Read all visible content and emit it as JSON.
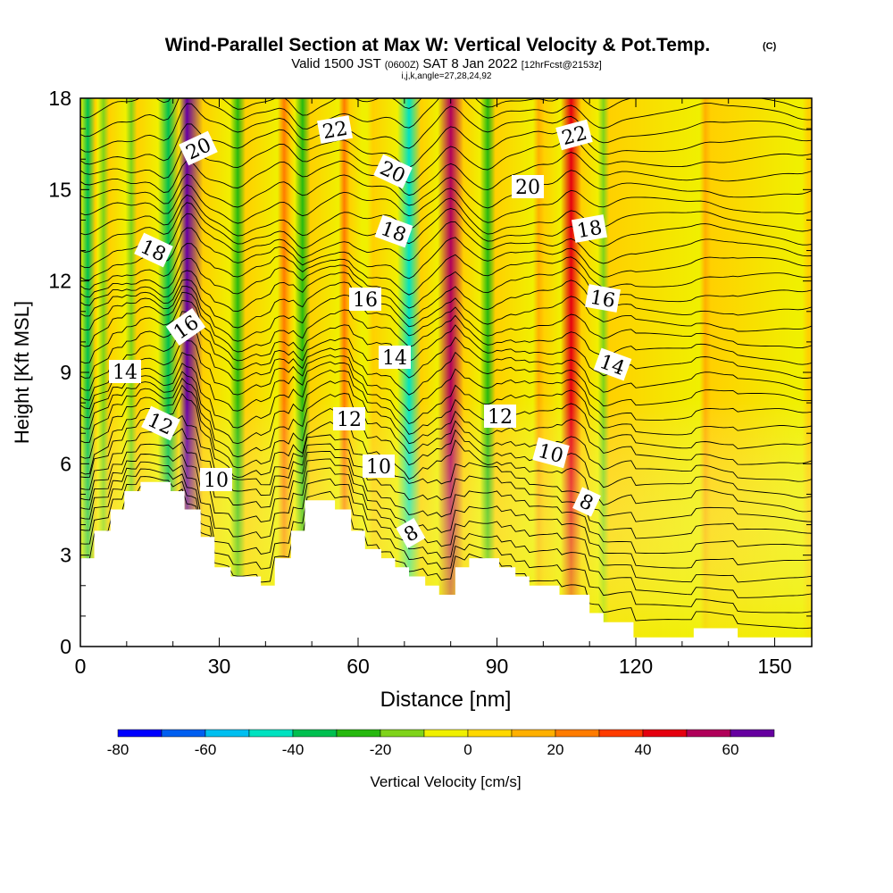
{
  "chart_data": {
    "type": "heatmap",
    "title": "Wind-Parallel Section at Max W: Vertical Velocity & Pot.Temp.",
    "title_mark": "(C)",
    "subtitle": {
      "valid": "Valid 1500 JST",
      "utc": "(0600Z)",
      "date": "SAT 8 Jan 2022",
      "forecast": "[12hrFcst@2153z]",
      "indices": "i,j,k,angle=27,28,24,92"
    },
    "xlabel": "Distance [nm]",
    "ylabel": "Height [Kft MSL]",
    "xlim": [
      0,
      158
    ],
    "ylim": [
      0,
      18
    ],
    "x_ticks": [
      "0",
      "30",
      "60",
      "90",
      "120",
      "150"
    ],
    "y_ticks": [
      "0",
      "3",
      "6",
      "9",
      "12",
      "15",
      "18"
    ],
    "colorbar": {
      "label": "Vertical Velocity [cm/s]",
      "tick_labels": [
        "-80",
        "-60",
        "-40",
        "-20",
        "0",
        "20",
        "40",
        "60"
      ],
      "levels": [
        -80,
        -70,
        -60,
        -50,
        -40,
        -30,
        -20,
        -10,
        0,
        10,
        20,
        30,
        40,
        50,
        60,
        70
      ],
      "colors": [
        "#0000ff",
        "#005ff0",
        "#00bff0",
        "#00e2c0",
        "#00bf50",
        "#27b80f",
        "#7fd31a",
        "#f0f000",
        "#ffd800",
        "#ffb000",
        "#ff7c00",
        "#ff3c00",
        "#e5000f",
        "#b0005a",
        "#6600a0"
      ]
    },
    "updrafts": [
      {
        "x": 1,
        "w": -40
      },
      {
        "x": 5,
        "w": -20
      },
      {
        "x": 11,
        "w": -20
      },
      {
        "x": 19,
        "w": -40
      },
      {
        "x": 23,
        "w": 65
      },
      {
        "x": 34,
        "w": -30
      },
      {
        "x": 44,
        "w": 25
      },
      {
        "x": 48,
        "w": -30
      },
      {
        "x": 57,
        "w": 20
      },
      {
        "x": 62,
        "w": -10
      },
      {
        "x": 71,
        "w": -45
      },
      {
        "x": 80,
        "w": 50
      },
      {
        "x": 88,
        "w": -30
      },
      {
        "x": 99,
        "w": 15
      },
      {
        "x": 106,
        "w": 40
      },
      {
        "x": 113,
        "w": -20
      },
      {
        "x": 135,
        "w": 10
      },
      {
        "x": 156,
        "w": -10
      }
    ],
    "theta_labels": [
      "8",
      "8",
      "10",
      "10",
      "10",
      "12",
      "12",
      "12",
      "14",
      "14",
      "14",
      "16",
      "16",
      "16",
      "18",
      "18",
      "18",
      "20",
      "20",
      "20",
      "22",
      "22"
    ],
    "terrain": [
      {
        "x": 0,
        "h": 2.9
      },
      {
        "x": 3,
        "h": 3.8
      },
      {
        "x": 6.5,
        "h": 4.5
      },
      {
        "x": 9.5,
        "h": 5.1
      },
      {
        "x": 13,
        "h": 5.4
      },
      {
        "x": 19.5,
        "h": 5.1
      },
      {
        "x": 22.5,
        "h": 4.5
      },
      {
        "x": 26,
        "h": 3.6
      },
      {
        "x": 29,
        "h": 2.6
      },
      {
        "x": 32.5,
        "h": 2.3
      },
      {
        "x": 39,
        "h": 2.0
      },
      {
        "x": 42,
        "h": 2.9
      },
      {
        "x": 45.5,
        "h": 3.8
      },
      {
        "x": 48.5,
        "h": 4.8
      },
      {
        "x": 55,
        "h": 4.5
      },
      {
        "x": 58.5,
        "h": 3.8
      },
      {
        "x": 61.5,
        "h": 3.2
      },
      {
        "x": 65,
        "h": 2.9
      },
      {
        "x": 68,
        "h": 2.6
      },
      {
        "x": 71,
        "h": 2.3
      },
      {
        "x": 74.5,
        "h": 2.0
      },
      {
        "x": 77.5,
        "h": 1.7
      },
      {
        "x": 81,
        "h": 2.6
      },
      {
        "x": 84,
        "h": 2.9
      },
      {
        "x": 87.5,
        "h": 2.9
      },
      {
        "x": 90.5,
        "h": 2.6
      },
      {
        "x": 94,
        "h": 2.3
      },
      {
        "x": 97,
        "h": 2.0
      },
      {
        "x": 103.5,
        "h": 1.7
      },
      {
        "x": 110,
        "h": 1.1
      },
      {
        "x": 113,
        "h": 0.8
      },
      {
        "x": 116.5,
        "h": 0.8
      },
      {
        "x": 119.5,
        "h": 0.3
      },
      {
        "x": 132.5,
        "h": 0.6
      },
      {
        "x": 142,
        "h": 0.3
      },
      {
        "x": 158,
        "h": 0.3
      }
    ]
  }
}
